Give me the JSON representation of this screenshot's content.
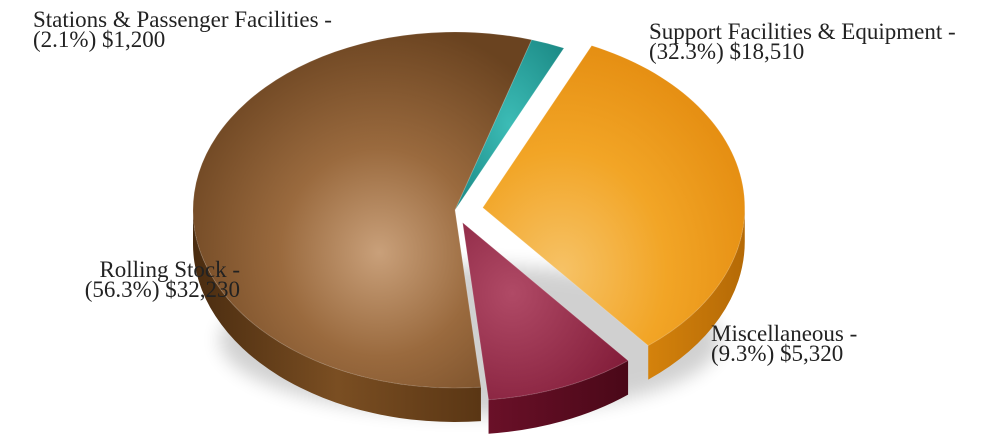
{
  "chart_data": {
    "type": "pie",
    "title": "",
    "slices": [
      {
        "name": "Stations & Passenger Facilities",
        "label": "Stations & Passenger Facilities -",
        "detail": "(2.1%) $1,200",
        "percent": 2.1,
        "value": 1200,
        "color": "#1f9a96"
      },
      {
        "name": "Support Facilities & Equipment",
        "label": "Support Facilities & Equipment -",
        "detail": "(32.3%) $18,510",
        "percent": 32.3,
        "value": 18510,
        "color": "#f2a022"
      },
      {
        "name": "Miscellaneous",
        "label": "Miscellaneous -",
        "detail": "(9.3%) $5,320",
        "percent": 9.3,
        "value": 5320,
        "color": "#8a1e3c"
      },
      {
        "name": "Rolling Stock",
        "label": "Rolling Stock -",
        "detail": "(56.3%) $32,230",
        "percent": 56.3,
        "value": 32230,
        "color": "#8a5a2a"
      }
    ],
    "legend": "none",
    "style": "3d-exploded"
  }
}
